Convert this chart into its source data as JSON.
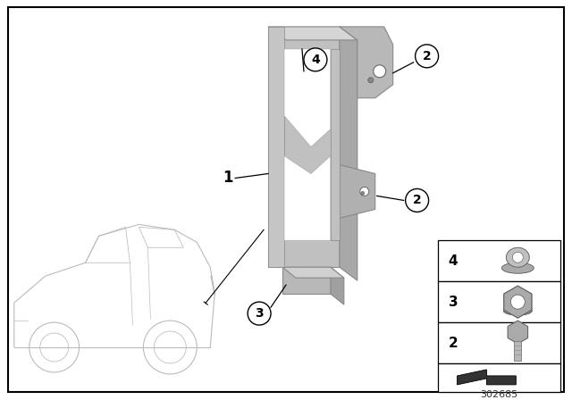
{
  "background_color": "#ffffff",
  "figure_number": "302685",
  "bracket_color": "#b8b8b8",
  "bracket_edge": "#888888",
  "car_color": "#cccccc",
  "car_edge": "#999999",
  "circle_fill": "#ffffff",
  "circle_edge": "#000000",
  "part_color": "#aaaaaa"
}
